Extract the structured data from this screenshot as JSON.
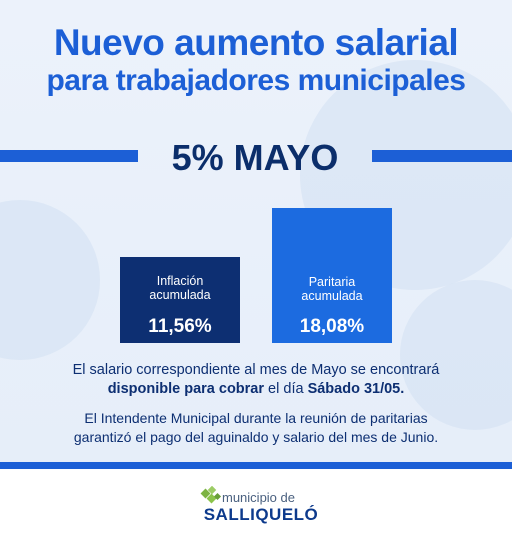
{
  "header": {
    "title_line1": "Nuevo aumento salarial",
    "title_line2": "para trabajadores municipales"
  },
  "headline": "5% MAYO",
  "chart_data": {
    "type": "bar",
    "categories": [
      "Inflación acumulada",
      "Paritaria acumulada"
    ],
    "values": [
      11.56,
      18.08
    ],
    "value_labels": [
      "11,56%",
      "18,08%"
    ],
    "colors": [
      "#0d2f72",
      "#1c6be0"
    ],
    "title": "",
    "xlabel": "",
    "ylabel": ""
  },
  "bars": [
    {
      "label_line1": "Inflación",
      "label_line2": "acumulada",
      "value": "11,56%"
    },
    {
      "label_line1": "Paritaria",
      "label_line2": "acumulada",
      "value": "18,08%"
    }
  ],
  "paragraph1": {
    "line1": "El salario correspondiente al mes de Mayo se encontrará",
    "bold1": "disponible para cobrar",
    "mid": " el día ",
    "bold2": "Sábado 31/05."
  },
  "paragraph2": {
    "line1": "El Intendente Municipal durante la reunión de paritarias",
    "line2": "garantizó el pago del aguinaldo y salario del mes de Junio."
  },
  "logo": {
    "small": "municipio de",
    "big": "SALLIQUELÓ"
  },
  "colors": {
    "accent": "#1c5fd6",
    "dark_blue": "#0d2f72",
    "bright_blue": "#1c6be0",
    "logo_green": "#7cb342"
  }
}
